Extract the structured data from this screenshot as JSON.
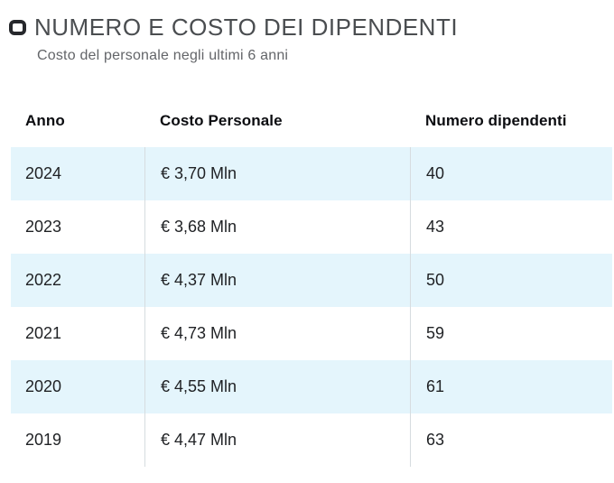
{
  "header": {
    "title": "NUMERO E COSTO DEI DIPENDENTI",
    "subtitle": "Costo del personale negli ultimi 6 anni",
    "icon": "rounded-square-icon"
  },
  "table": {
    "columns": [
      "Anno",
      "Costo Personale",
      "Numero dipendenti"
    ],
    "rows": [
      {
        "anno": "2024",
        "costo": "€ 3,70 Mln",
        "numero": "40"
      },
      {
        "anno": "2023",
        "costo": "€ 3,68 Mln",
        "numero": "43"
      },
      {
        "anno": "2022",
        "costo": "€ 4,37 Mln",
        "numero": "50"
      },
      {
        "anno": "2021",
        "costo": "€ 4,73 Mln",
        "numero": "59"
      },
      {
        "anno": "2020",
        "costo": "€ 4,55 Mln",
        "numero": "61"
      },
      {
        "anno": "2019",
        "costo": "€ 4,47 Mln",
        "numero": "63"
      }
    ]
  },
  "chart_data": {
    "type": "table",
    "title": "NUMERO E COSTO DEI DIPENDENTI",
    "subtitle": "Costo del personale negli ultimi 6 anni",
    "columns": [
      "Anno",
      "Costo Personale",
      "Numero dipendenti"
    ],
    "categories": [
      "2024",
      "2023",
      "2022",
      "2021",
      "2020",
      "2019"
    ],
    "series": [
      {
        "name": "Costo Personale",
        "unit": "Mln €",
        "values": [
          3.7,
          3.68,
          4.37,
          4.73,
          4.55,
          4.47
        ],
        "labels": [
          "€ 3,70 Mln",
          "€ 3,68 Mln",
          "€ 4,37 Mln",
          "€ 4,73 Mln",
          "€ 4,55 Mln",
          "€ 4,47 Mln"
        ]
      },
      {
        "name": "Numero dipendenti",
        "values": [
          40,
          43,
          50,
          59,
          61,
          63
        ]
      }
    ],
    "layout": "zebra-striped data table, 3 left-aligned columns, no horizontal grid, vertical column separators"
  },
  "colors": {
    "row_alt_bg": "#e4f5fc",
    "column_border": "#d6dcdf",
    "title_text": "#4a4d50",
    "subtitle_text": "#636569",
    "header_text": "#0b0c10",
    "cell_text": "#1f2124",
    "icon": "#26282c"
  }
}
